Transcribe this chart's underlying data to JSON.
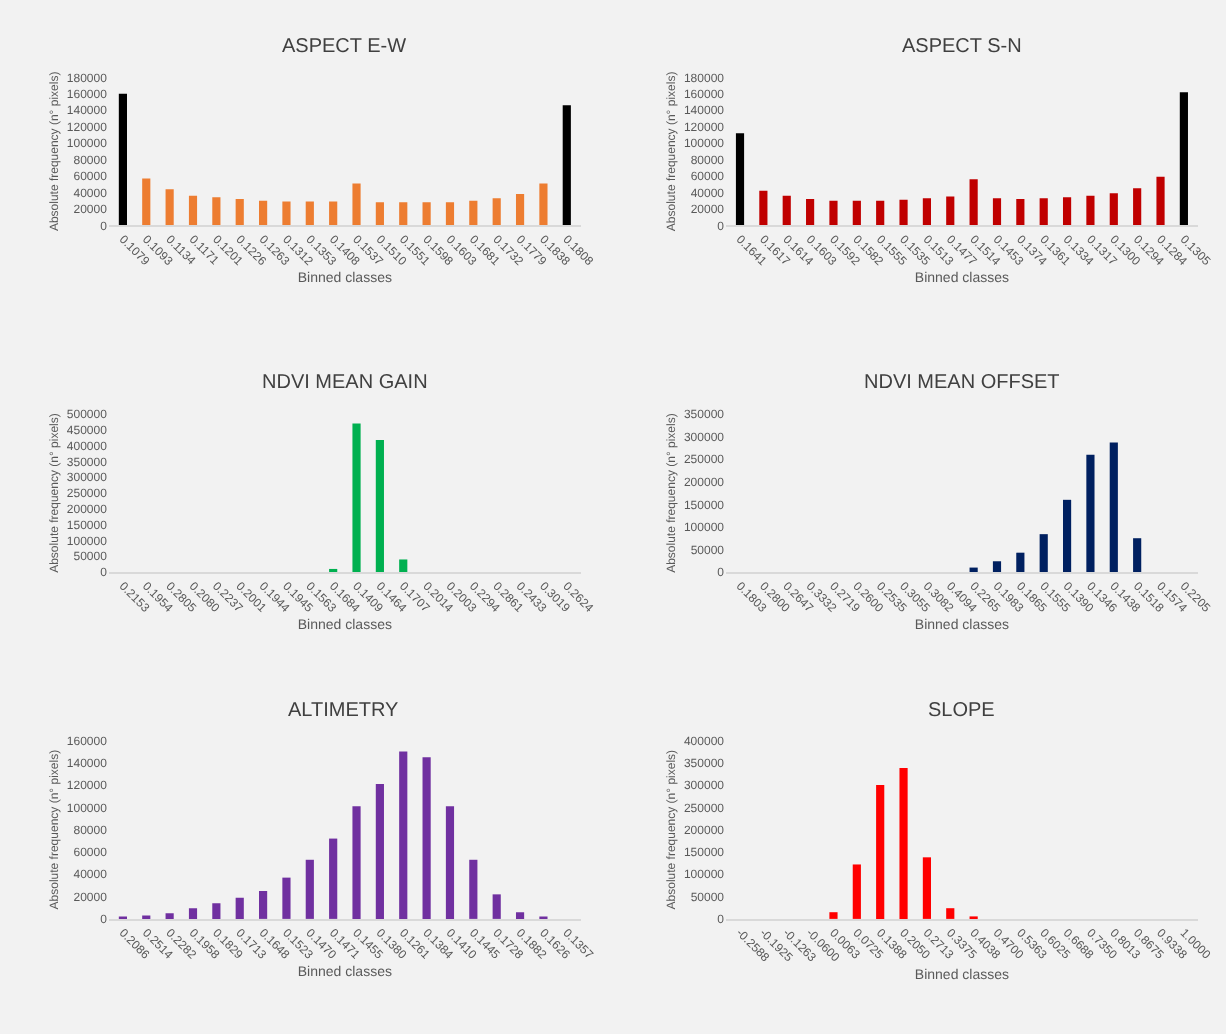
{
  "chart_data": [
    {
      "type": "bar",
      "title": "ASPECT E-W",
      "xlabel": "Binned classes",
      "ylabel": "Absolute frequency (n° pixels)",
      "categories": [
        "0.1079",
        "0.1093",
        "0.1134",
        "0.1171",
        "0.1201",
        "0.1226",
        "0.1263",
        "0.1312",
        "0.1353",
        "0.1408",
        "0.1537",
        "0.1510",
        "0.1551",
        "0.1598",
        "0.1603",
        "0.1681",
        "0.1732",
        "0.1779",
        "0.1838",
        "0.1808"
      ],
      "values": [
        160000,
        57000,
        44000,
        36000,
        34000,
        32000,
        30000,
        29000,
        29000,
        29000,
        51000,
        28000,
        28000,
        28000,
        28000,
        30000,
        33000,
        38000,
        51000,
        146000
      ],
      "colors": [
        "#000000",
        "#ed7d31",
        "#ed7d31",
        "#ed7d31",
        "#ed7d31",
        "#ed7d31",
        "#ed7d31",
        "#ed7d31",
        "#ed7d31",
        "#ed7d31",
        "#ed7d31",
        "#ed7d31",
        "#ed7d31",
        "#ed7d31",
        "#ed7d31",
        "#ed7d31",
        "#ed7d31",
        "#ed7d31",
        "#ed7d31",
        "#000000"
      ],
      "ylim": [
        0,
        180000
      ],
      "yticks": [
        0,
        20000,
        40000,
        60000,
        80000,
        100000,
        120000,
        140000,
        160000,
        180000
      ],
      "grid": false
    },
    {
      "type": "bar",
      "title": "ASPECT S-N",
      "xlabel": "Binned classes",
      "ylabel": "Absolute frequency (n° pixels)",
      "categories": [
        "0.1641",
        "0.1617",
        "0.1614",
        "0.1603",
        "0.1592",
        "0.1582",
        "0.1555",
        "0.1535",
        "0.1513",
        "0.1477",
        "0.1514",
        "0.1453",
        "0.1374",
        "0.1361",
        "0.1334",
        "0.1317",
        "0.1300",
        "0.1294",
        "0.1284",
        "0.1305"
      ],
      "values": [
        112000,
        42000,
        36000,
        32000,
        30000,
        30000,
        30000,
        31000,
        33000,
        35000,
        56000,
        33000,
        32000,
        33000,
        34000,
        36000,
        39000,
        45000,
        59000,
        162000
      ],
      "colors": [
        "#000000",
        "#c00000",
        "#c00000",
        "#c00000",
        "#c00000",
        "#c00000",
        "#c00000",
        "#c00000",
        "#c00000",
        "#c00000",
        "#c00000",
        "#c00000",
        "#c00000",
        "#c00000",
        "#c00000",
        "#c00000",
        "#c00000",
        "#c00000",
        "#c00000",
        "#000000"
      ],
      "ylim": [
        0,
        180000
      ],
      "yticks": [
        0,
        20000,
        40000,
        60000,
        80000,
        100000,
        120000,
        140000,
        160000,
        180000
      ],
      "grid": false
    },
    {
      "type": "bar",
      "title": "NDVI MEAN GAIN",
      "xlabel": "Binned classes",
      "ylabel": "Absolute frequency (n° pixels)",
      "categories": [
        "0.2153",
        "0.1954",
        "0.2805",
        "0.2080",
        "0.2237",
        "0.2001",
        "0.1944",
        "0.1945",
        "0.1563",
        "0.1684",
        "0.1409",
        "0.1464",
        "0.1707",
        "0.2014",
        "0.2003",
        "0.2294",
        "0.2861",
        "0.2433",
        "0.3019",
        "0.2624"
      ],
      "values": [
        0,
        0,
        0,
        0,
        0,
        0,
        0,
        0,
        0,
        10000,
        470000,
        418000,
        40000,
        0,
        0,
        0,
        0,
        0,
        0,
        0
      ],
      "color": "#00b050",
      "ylim": [
        0,
        500000
      ],
      "yticks": [
        0,
        50000,
        100000,
        150000,
        200000,
        250000,
        300000,
        350000,
        400000,
        450000,
        500000
      ],
      "grid": false
    },
    {
      "type": "bar",
      "title": "NDVI MEAN OFFSET",
      "xlabel": "Binned classes",
      "ylabel": "Absolute frequency (n° pixels)",
      "categories": [
        "0.1803",
        "0.2800",
        "0.2647",
        "0.3332",
        "0.2719",
        "0.2600",
        "0.2535",
        "0.3055",
        "0.3082",
        "0.4094",
        "0.2265",
        "0.1983",
        "0.1865",
        "0.1555",
        "0.1390",
        "0.1346",
        "0.1438",
        "0.1518",
        "0.1574",
        "0.2205"
      ],
      "values": [
        0,
        0,
        0,
        0,
        0,
        0,
        0,
        0,
        0,
        0,
        10000,
        24000,
        43000,
        84000,
        160000,
        260000,
        287000,
        75000,
        0,
        0
      ],
      "color": "#002060",
      "ylim": [
        0,
        350000
      ],
      "yticks": [
        0,
        50000,
        100000,
        150000,
        200000,
        250000,
        300000,
        350000
      ],
      "grid": false
    },
    {
      "type": "bar",
      "title": "ALTIMETRY",
      "xlabel": "Binned classes",
      "ylabel": "Absolute frequency (n° pixels)",
      "categories": [
        "0.2086",
        "0.2514",
        "0.2282",
        "0.1958",
        "0.1829",
        "0.1713",
        "0.1648",
        "0.1523",
        "0.1470",
        "0.1471",
        "0.1455",
        "0.1380",
        "0.1261",
        "0.1384",
        "0.1410",
        "0.1445",
        "0.1728",
        "0.1882",
        "0.1626",
        "0.1357"
      ],
      "values": [
        1000,
        3000,
        5000,
        9500,
        14000,
        19000,
        25000,
        37000,
        53000,
        72000,
        101000,
        121000,
        150000,
        145000,
        101000,
        53000,
        22000,
        6000,
        1000,
        0
      ],
      "color": "#7030a0",
      "ylim": [
        0,
        160000
      ],
      "yticks": [
        0,
        20000,
        40000,
        60000,
        80000,
        100000,
        120000,
        140000,
        160000
      ],
      "grid": false
    },
    {
      "type": "bar",
      "title": "SLOPE",
      "xlabel": "Binned classes",
      "ylabel": "Absolute frequency (n° pixels)",
      "categories": [
        "-0.2588",
        "-0.1925",
        "-0.1263",
        "-0.0600",
        "0.0063",
        "0.0725",
        "0.1388",
        "0.2050",
        "0.2713",
        "0.3375",
        "0.4038",
        "0.4700",
        "0.5363",
        "0.6025",
        "0.6688",
        "0.7350",
        "0.8013",
        "0.8675",
        "0.9338",
        "1.0000"
      ],
      "values": [
        0,
        0,
        0,
        0,
        15000,
        122000,
        300000,
        338000,
        138000,
        24000,
        5000,
        0,
        0,
        0,
        0,
        0,
        0,
        0,
        0,
        0
      ],
      "color": "#ff0000",
      "ylim": [
        0,
        400000
      ],
      "yticks": [
        0,
        50000,
        100000,
        150000,
        200000,
        250000,
        300000,
        350000,
        400000
      ],
      "grid": false
    }
  ]
}
